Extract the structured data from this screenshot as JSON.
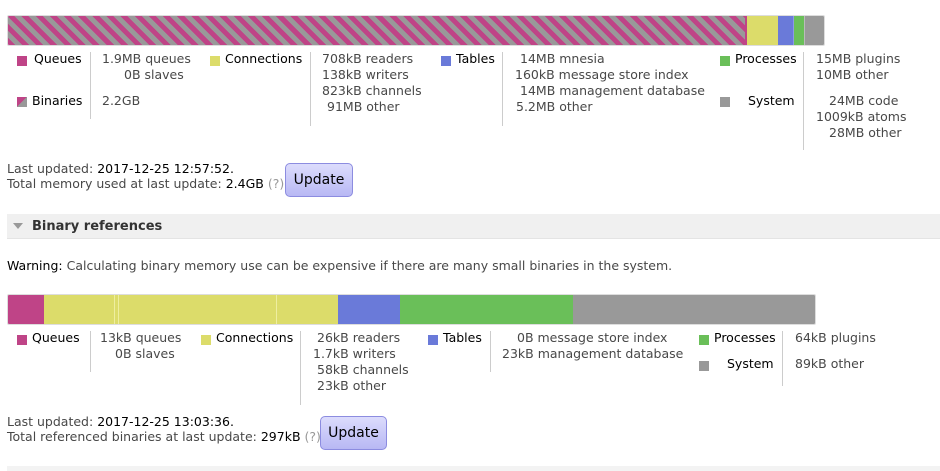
{
  "colors": {
    "queues": "#bf4487",
    "connections": "#dcdc6a",
    "tables": "#6a7ad9",
    "processes": "#6abf59",
    "system": "#999999"
  },
  "memory": {
    "legend": {
      "queues": "Queues",
      "binaries": "Binaries",
      "connections": "Connections",
      "tables": "Tables",
      "processes": "Processes",
      "system": "System"
    },
    "queues": [
      "1.9MB queues",
      "0B slaves"
    ],
    "binaries": "2.2GB",
    "connections": [
      "708kB readers",
      "138kB writers",
      "823kB channels",
      "91MB other"
    ],
    "tables": [
      "14MB mnesia",
      "160kB message store index",
      "14MB management database",
      "5.2MB other"
    ],
    "processes": [
      "15MB plugins",
      "10MB other"
    ],
    "system": [
      "24MB code",
      "1009kB atoms",
      "28MB other"
    ],
    "last_updated_label": "Last updated:",
    "last_updated": "2017-12-25 12:57:52.",
    "total_label": "Total memory used at last update:",
    "total": "2.4GB",
    "help": "(?)",
    "update": "Update"
  },
  "binary_section": {
    "title": "Binary references",
    "warning_label": "Warning:",
    "warning": "Calculating binary memory use can be expensive if there are many small binaries in the system."
  },
  "binaries": {
    "legend": {
      "queues": "Queues",
      "connections": "Connections",
      "tables": "Tables",
      "processes": "Processes",
      "system": "System"
    },
    "queues": [
      "13kB queues",
      "0B slaves"
    ],
    "connections": [
      "26kB readers",
      "1.7kB writers",
      "58kB channels",
      "23kB other"
    ],
    "tables": [
      "0B message store index",
      "23kB management database"
    ],
    "processes": [
      "64kB plugins"
    ],
    "system": [
      "89kB other"
    ],
    "last_updated_label": "Last updated:",
    "last_updated": "2017-12-25 13:03:36.",
    "total_label": "Total referenced binaries at last update:",
    "total": "297kB",
    "help": "(?)",
    "update": "Update"
  }
}
